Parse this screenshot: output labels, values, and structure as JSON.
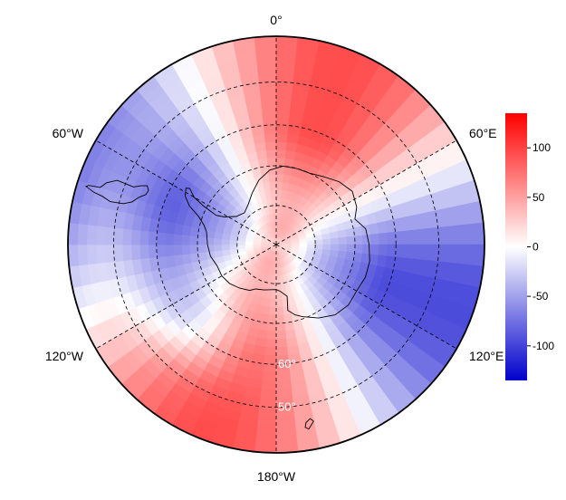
{
  "map": {
    "projection": "south-polar-stereographic",
    "boundary_latitude": -40,
    "field": "anomaly",
    "color_scale": {
      "min": -135,
      "max": 135,
      "low_color": "#0000cc",
      "mid_color": "#ffffff",
      "high_color": "#ff0000"
    },
    "longitude_labels": [
      {
        "text": "0°",
        "lon": 0
      },
      {
        "text": "60°E",
        "lon": 60
      },
      {
        "text": "120°E",
        "lon": 120
      },
      {
        "text": "180°W",
        "lon": 180
      },
      {
        "text": "120°W",
        "lon": -120
      },
      {
        "text": "60°W",
        "lon": -60
      }
    ],
    "latitude_labels": [
      {
        "text": "60°",
        "lat": -60
      },
      {
        "text": "50°",
        "lat": -50
      }
    ],
    "latitude_circles": [
      -80,
      -70,
      -60,
      -50
    ],
    "colorbar": {
      "ticks": [
        {
          "value": 100,
          "label": "100"
        },
        {
          "value": 50,
          "label": "50"
        },
        {
          "value": 0,
          "label": "0"
        },
        {
          "value": -50,
          "label": "-50"
        },
        {
          "value": -100,
          "label": "-100"
        }
      ]
    }
  }
}
